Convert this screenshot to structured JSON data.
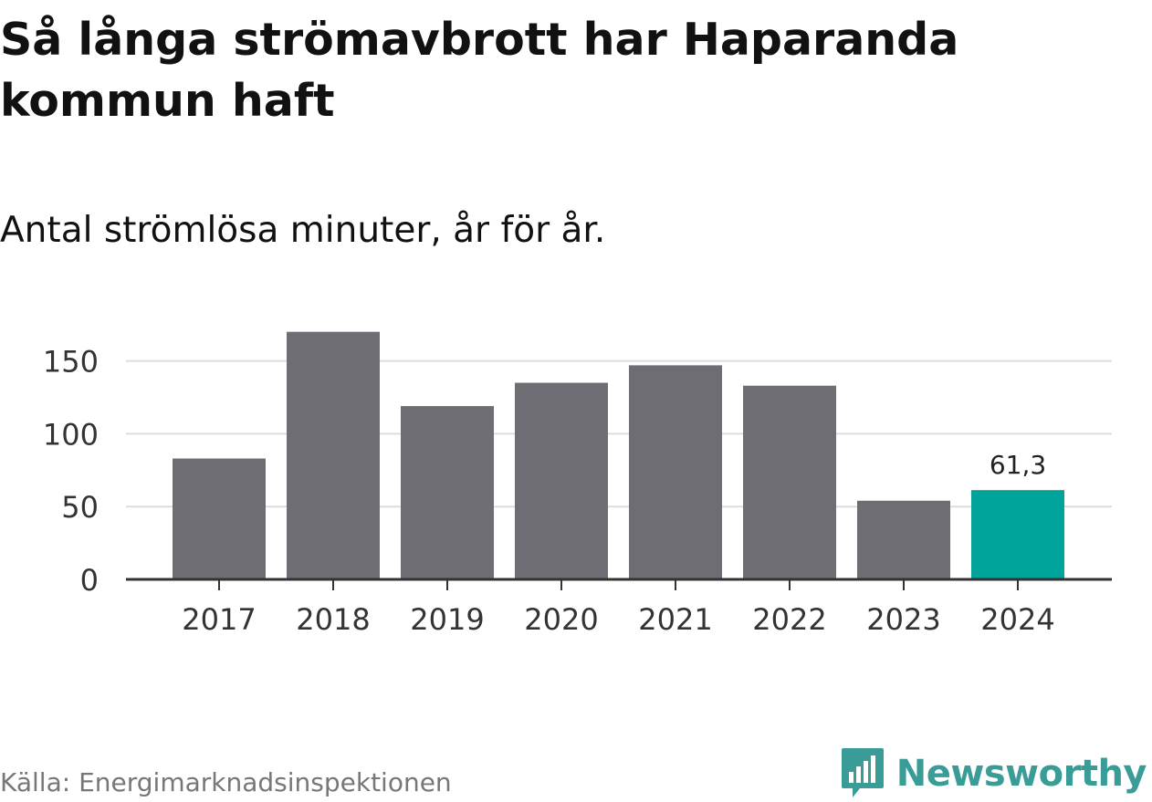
{
  "chart_data": {
    "type": "bar",
    "title": "Så långa strömavbrott har Haparanda kommun haft",
    "subtitle": "Antal strömlösa minuter, år för år.",
    "categories": [
      "2017",
      "2018",
      "2019",
      "2020",
      "2021",
      "2022",
      "2023",
      "2024"
    ],
    "values": [
      83,
      170,
      119,
      135,
      147,
      133,
      54,
      61.3
    ],
    "highlight_index": 7,
    "highlight_label": "61,3",
    "yticks": [
      0,
      50,
      100,
      150
    ],
    "ylim": [
      0,
      180
    ],
    "xlabel": "",
    "ylabel": "",
    "grid": true,
    "colors": {
      "bar": "#6e6d73",
      "highlight": "#00a49a",
      "grid": "#dddddd",
      "axis": "#333333",
      "tick_text": "#333333"
    }
  },
  "source": "Källa: Energimarknadsinspektionen",
  "brand": {
    "name": "Newsworthy",
    "icon": "newsworthy-logo-icon",
    "color": "#3a9c97"
  }
}
